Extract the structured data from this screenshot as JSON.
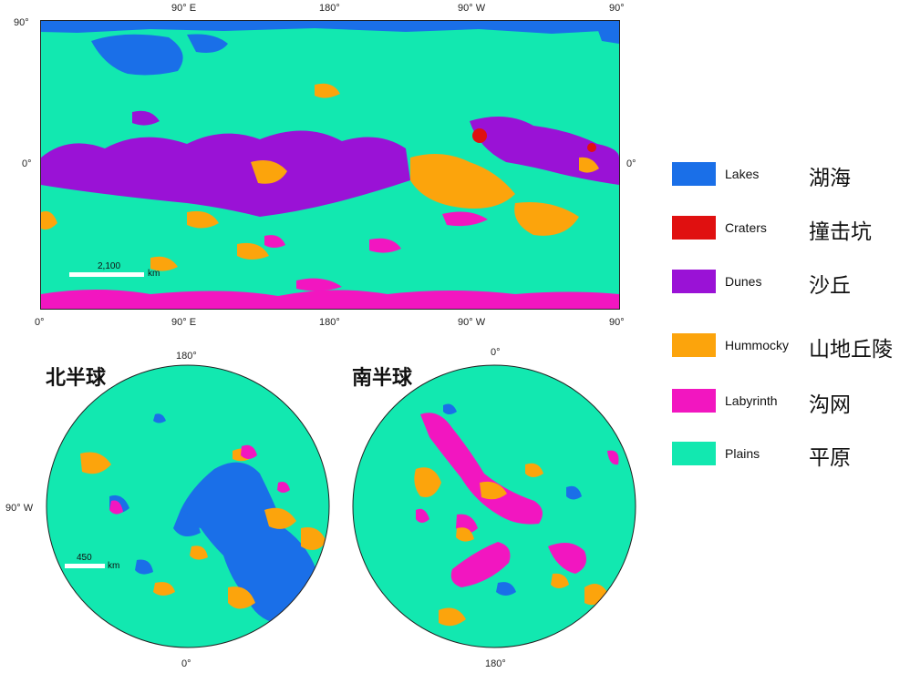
{
  "legend": {
    "items": [
      {
        "en": "Lakes",
        "zh": "湖海",
        "color": "#1a6fe8"
      },
      {
        "en": "Craters",
        "zh": "撞击坑",
        "color": "#e01010"
      },
      {
        "en": "Dunes",
        "zh": "沙丘",
        "color": "#9a12d6"
      },
      {
        "en": "Hummocky",
        "zh": "山地丘陵",
        "color": "#fca40c"
      },
      {
        "en": "Labyrinth",
        "zh": "沟网",
        "color": "#f216c0"
      },
      {
        "en": "Plains",
        "zh": "平原",
        "color": "#12e8b0"
      }
    ]
  },
  "global_map": {
    "top_ticks": [
      "90° E",
      "180°",
      "90° W",
      "90°"
    ],
    "bottom_ticks": [
      "0°",
      "90° E",
      "180°",
      "90° W",
      "90°"
    ],
    "left_ticks": [
      "90°",
      "0°"
    ],
    "right_tick": "0°",
    "scale_value": "2,100",
    "scale_unit": "km"
  },
  "north_polar": {
    "title": "北半球",
    "top_label": "180°",
    "left_label": "90° W",
    "bottom_label": "0°",
    "scale_value": "450",
    "scale_unit": "km"
  },
  "south_polar": {
    "title": "南半球",
    "top_label": "0°",
    "bottom_label": "180°"
  }
}
